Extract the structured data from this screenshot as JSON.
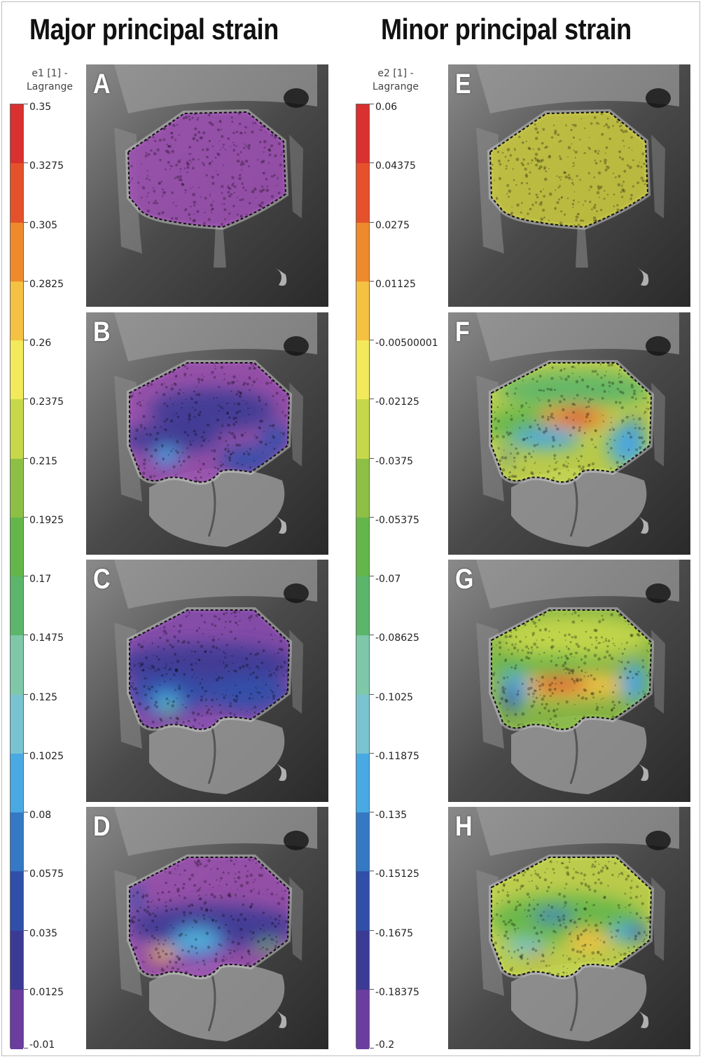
{
  "titles": {
    "left": "Major principal strain",
    "right": "Minor principal strain"
  },
  "legend_left": {
    "header_line1": "e1 [1] -",
    "header_line2": "Lagrange",
    "ticks": [
      "0.35",
      "0.3275",
      "0.305",
      "0.2825",
      "0.26",
      "0.2375",
      "0.215",
      "0.1925",
      "0.17",
      "0.1475",
      "0.125",
      "0.1025",
      "0.08",
      "0.0575",
      "0.035",
      "0.0125",
      "-0.01"
    ]
  },
  "legend_right": {
    "header_line1": "e2 [1] -",
    "header_line2": "Lagrange",
    "ticks": [
      "0.06",
      "0.04375",
      "0.0275",
      "0.01125",
      "-0.00500001",
      "-0.02125",
      "-0.0375",
      "-0.05375",
      "-0.07",
      "-0.08625",
      "-0.1025",
      "-0.11875",
      "-0.135",
      "-0.15125",
      "-0.1675",
      "-0.18375",
      "-0.2"
    ]
  },
  "colormap": [
    "#d93030",
    "#e4512b",
    "#ef8a2c",
    "#f5c142",
    "#f2ea5a",
    "#c6d84a",
    "#8dbf45",
    "#63b64a",
    "#5bb56a",
    "#7ec7a9",
    "#79c3d1",
    "#49a9e2",
    "#3578c4",
    "#2f4fa8",
    "#3b3a94",
    "#6a3d9e",
    "#9b4fb0"
  ],
  "panels": {
    "A": {
      "letter": "A"
    },
    "B": {
      "letter": "B"
    },
    "C": {
      "letter": "C"
    },
    "D": {
      "letter": "D"
    },
    "E": {
      "letter": "E"
    },
    "F": {
      "letter": "F"
    },
    "G": {
      "letter": "G"
    },
    "H": {
      "letter": "H"
    }
  }
}
